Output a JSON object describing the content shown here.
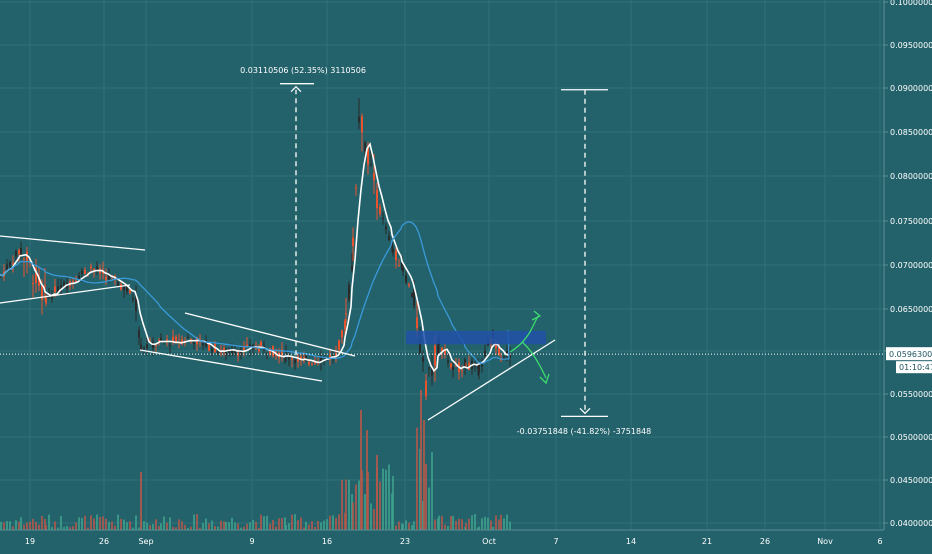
{
  "chart_data": {
    "type": "candlestick",
    "title": "",
    "xlabel": "",
    "ylabel": "",
    "ylim": [
      0.04,
      0.1
    ],
    "x_ticks": [
      "19",
      "26",
      "Sep",
      "9",
      "16",
      "23",
      "Oct",
      "7",
      "14",
      "21",
      "26",
      "Nov",
      "6"
    ],
    "y_ticks": [
      "0.04000000",
      "0.04500000",
      "0.05000000",
      "0.05500000",
      "0.06000000",
      "0.06500000",
      "0.07000000",
      "0.07500000",
      "0.08000000",
      "0.08500000",
      "0.09000000",
      "0.09500000",
      "0.10000000"
    ],
    "last_price": "0.05963000",
    "countdown": "01:10:47",
    "grid": true,
    "colors": {
      "background": "#23626b",
      "up": "#2a2a2a",
      "down": "#e8522c",
      "fast_ma": "#ffffff",
      "slow_ma": "#3a9ad9",
      "zone": "#2151a8",
      "projection": "#3ddc6c",
      "trendline": "#ffffff",
      "volume_up": "#3fa38c",
      "volume_down": "#b5584a"
    },
    "price_path": [
      [
        "19",
        0.0688
      ],
      [
        "22",
        0.0718
      ],
      [
        "25",
        0.0662
      ],
      [
        "27",
        0.0675
      ],
      [
        "29",
        0.0697
      ],
      [
        "31",
        0.0678
      ],
      [
        "Sep 1",
        0.066
      ],
      [
        "Sep 2",
        0.0605
      ],
      [
        "Sep 4",
        0.061
      ],
      [
        "Sep 6",
        0.0615
      ],
      [
        "Sep 8",
        0.0598
      ],
      [
        "Sep 10",
        0.0605
      ],
      [
        "Sep 12",
        0.0595
      ],
      [
        "Sep 14",
        0.0588
      ],
      [
        "Sep 16",
        0.0595
      ],
      [
        "Sep 17",
        0.0635
      ],
      [
        "Sep 18",
        0.072
      ],
      [
        "Sep 19",
        0.0875
      ],
      [
        "Sep 20",
        0.0805
      ],
      [
        "Sep 21",
        0.075
      ],
      [
        "Sep 22",
        0.0718
      ],
      [
        "Sep 23",
        0.0695
      ],
      [
        "Sep 24",
        0.066
      ],
      [
        "Sep 25",
        0.0555
      ],
      [
        "Sep 26",
        0.0612
      ],
      [
        "Sep 27",
        0.0578
      ],
      [
        "Sep 28",
        0.0585
      ],
      [
        "Sep 29",
        0.058
      ],
      [
        "Sep 30",
        0.0617
      ],
      [
        "Oct 1",
        0.0595
      ],
      [
        "Oct 2",
        0.0597
      ]
    ],
    "annotations": [
      {
        "label": "0.03110506 (52.35%) 3110506",
        "from": 0.0595,
        "to": 0.0905
      },
      {
        "label": "-0.03751848 (-41.82%) -3751848",
        "from": 0.0898,
        "to": 0.0524
      }
    ],
    "zone": {
      "from": 0.0608,
      "to": 0.0624
    }
  }
}
